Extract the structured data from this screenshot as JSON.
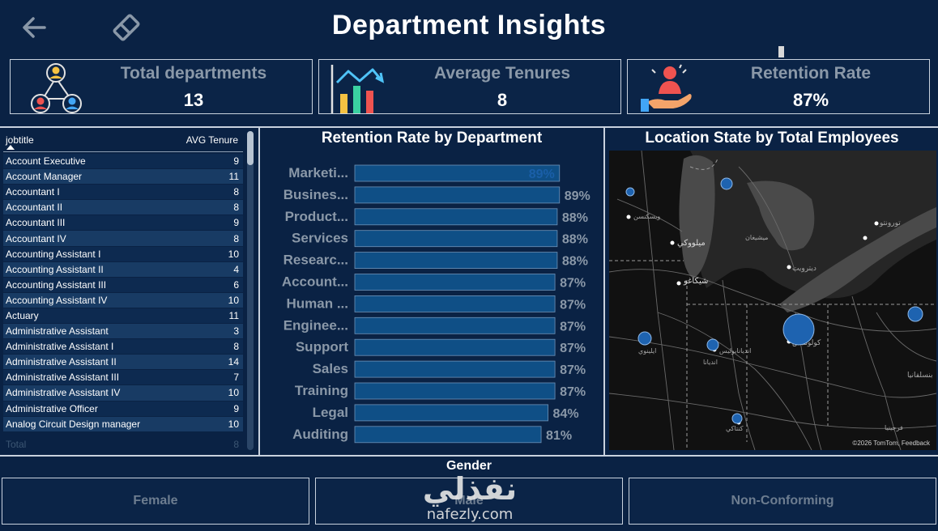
{
  "header": {
    "title": "Department Insights"
  },
  "kpis": [
    {
      "label": "Total departments",
      "value": "13",
      "icon": "org-chart-icon"
    },
    {
      "label": "Average Tenures",
      "value": "8",
      "icon": "growth-chart-icon"
    },
    {
      "label": "Retention Rate",
      "value": "87%",
      "icon": "hand-person-icon"
    }
  ],
  "table": {
    "col_job": "jobtitle",
    "col_tenure": "AVG Tenure",
    "rows": [
      {
        "job": "Account Executive",
        "tenure": "9"
      },
      {
        "job": "Account Manager",
        "tenure": "11"
      },
      {
        "job": "Accountant I",
        "tenure": "8"
      },
      {
        "job": "Accountant II",
        "tenure": "8"
      },
      {
        "job": "Accountant III",
        "tenure": "9"
      },
      {
        "job": "Accountant IV",
        "tenure": "8"
      },
      {
        "job": "Accounting Assistant I",
        "tenure": "10"
      },
      {
        "job": "Accounting Assistant II",
        "tenure": "4"
      },
      {
        "job": "Accounting Assistant III",
        "tenure": "6"
      },
      {
        "job": "Accounting Assistant IV",
        "tenure": "10"
      },
      {
        "job": "Actuary",
        "tenure": "11"
      },
      {
        "job": "Administrative Assistant",
        "tenure": "3"
      },
      {
        "job": "Administrative Assistant I",
        "tenure": "8"
      },
      {
        "job": "Administrative Assistant II",
        "tenure": "14"
      },
      {
        "job": "Administrative Assistant III",
        "tenure": "7"
      },
      {
        "job": "Administrative Assistant IV",
        "tenure": "10"
      },
      {
        "job": "Administrative Officer",
        "tenure": "9"
      },
      {
        "job": "Analog Circuit Design manager",
        "tenure": "10"
      }
    ],
    "total_label": "Total",
    "total_value": "8"
  },
  "chart_data": {
    "type": "bar",
    "orientation": "horizontal",
    "title": "Retention Rate by Department",
    "categories": [
      "Marketi...",
      "Busines...",
      "Product...",
      "Services",
      "Researc...",
      "Account...",
      "Human ...",
      "Enginee...",
      "Support",
      "Sales",
      "Training",
      "Legal",
      "Auditing"
    ],
    "values": [
      89,
      89,
      88,
      88,
      88,
      87,
      87,
      87,
      87,
      87,
      87,
      84,
      81
    ],
    "labels": [
      "89%",
      "89%",
      "88%",
      "88%",
      "88%",
      "87%",
      "87%",
      "87%",
      "87%",
      "87%",
      "87%",
      "84%",
      "81%"
    ],
    "xlim": [
      0,
      100
    ],
    "bar_color": "#0f4f86",
    "first_label_inside": true
  },
  "map": {
    "title": "Location State by Total Employees",
    "credit": "©2026 TomTom, Feedback",
    "bubble_color": "#1e63b0"
  },
  "gender": {
    "title": "Gender",
    "options": [
      "Female",
      "Male",
      "Non-Conforming"
    ]
  },
  "watermark": {
    "arabic": "نفذلي",
    "latin": "nafezly.com"
  }
}
